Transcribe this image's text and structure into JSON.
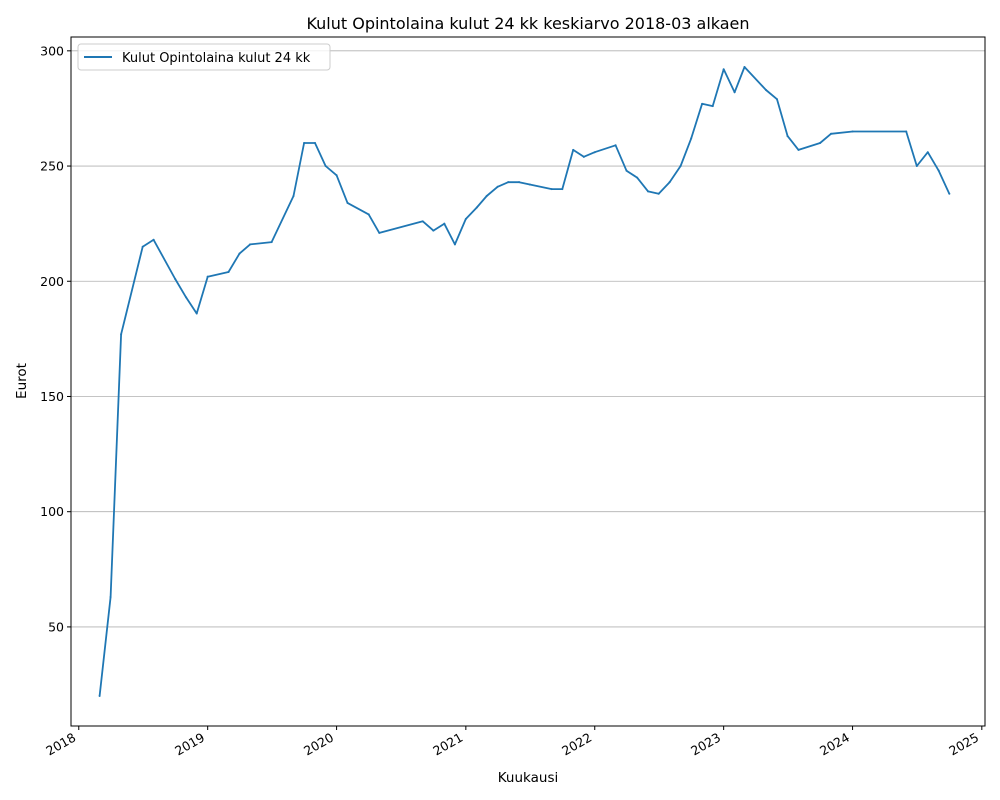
{
  "chart_data": {
    "type": "line",
    "title": "Kulut Opintolaina kulut 24 kk keskiarvo 2018-03 alkaen",
    "xlabel": "Kuukausi",
    "ylabel": "Eurot",
    "xlim": [
      "2017-12-10",
      "2025-01-10"
    ],
    "ylim": [
      7,
      306
    ],
    "x_ticks": [
      "2018",
      "2019",
      "2020",
      "2021",
      "2022",
      "2023",
      "2024",
      "2025"
    ],
    "y_ticks": [
      50,
      100,
      150,
      200,
      250,
      300
    ],
    "grid": "horizontal",
    "legend_position": "upper-left",
    "color": "#1f77b4",
    "series": [
      {
        "name": "Kulut Opintolaina kulut 24 kk",
        "x": [
          "2018-03",
          "2018-04",
          "2018-05",
          "2018-07",
          "2018-08",
          "2018-10",
          "2018-11",
          "2018-12",
          "2019-01",
          "2019-03",
          "2019-04",
          "2019-05",
          "2019-07",
          "2019-09",
          "2019-10",
          "2019-11",
          "2019-12",
          "2020-01",
          "2020-02",
          "2020-04",
          "2020-05",
          "2020-09",
          "2020-10",
          "2020-11",
          "2020-12",
          "2021-01",
          "2021-02",
          "2021-03",
          "2021-04",
          "2021-05",
          "2021-06",
          "2021-07",
          "2021-09",
          "2021-10",
          "2021-11",
          "2021-12",
          "2022-01",
          "2022-03",
          "2022-04",
          "2022-05",
          "2022-06",
          "2022-07",
          "2022-08",
          "2022-09",
          "2022-10",
          "2022-11",
          "2022-12",
          "2023-01",
          "2023-02",
          "2023-03",
          "2023-05",
          "2023-06",
          "2023-07",
          "2023-08",
          "2023-10",
          "2023-11",
          "2024-01",
          "2024-06",
          "2024-07",
          "2024-08",
          "2024-09",
          "2024-10"
        ],
        "y": [
          20,
          63,
          177,
          215,
          218,
          201,
          193,
          186,
          202,
          204,
          212,
          216,
          217,
          237,
          260,
          260,
          250,
          246,
          234,
          229,
          221,
          226,
          222,
          225,
          216,
          227,
          232,
          237,
          241,
          243,
          243,
          242,
          240,
          240,
          257,
          254,
          256,
          259,
          248,
          245,
          239,
          238,
          243,
          250,
          262,
          277,
          276,
          292,
          282,
          293,
          283,
          279,
          263,
          257,
          260,
          264,
          265,
          265,
          250,
          256,
          248,
          238
        ]
      }
    ]
  }
}
